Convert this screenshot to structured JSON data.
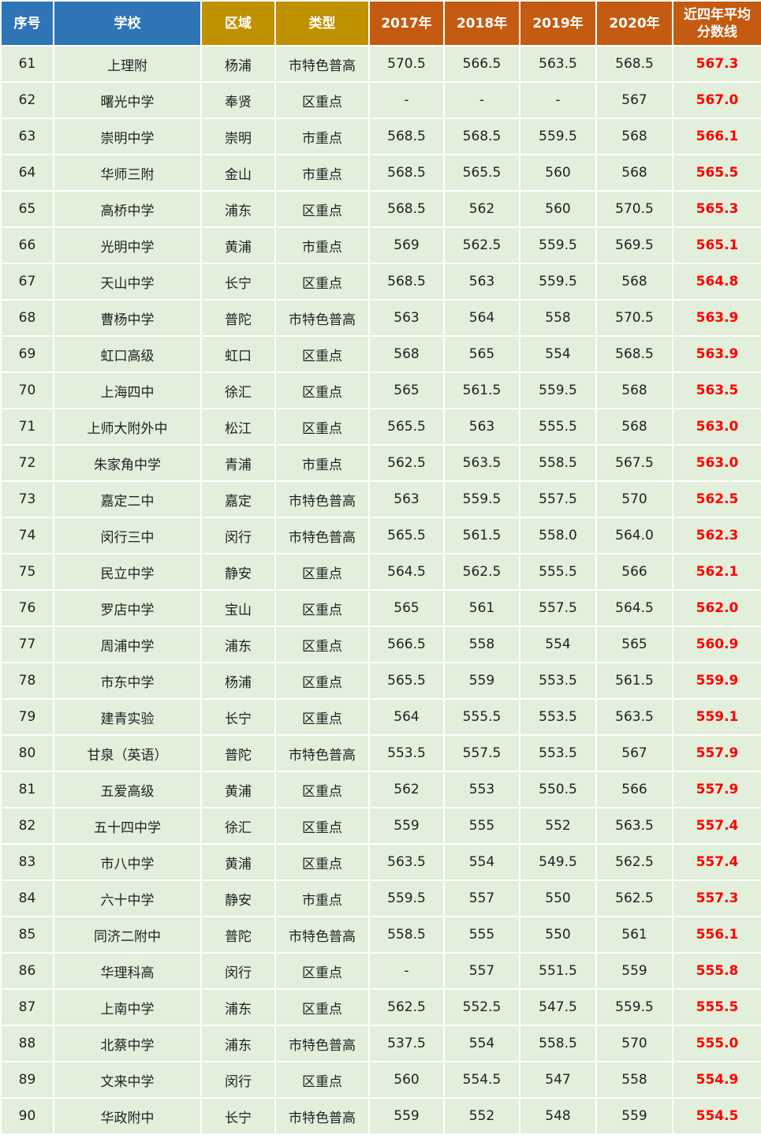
{
  "colors": {
    "header_blue": "#2e75b6",
    "header_gold": "#bf9000",
    "header_orange": "#c55a11",
    "row_bg": "#e2efda",
    "avg_text": "#ff0000"
  },
  "headers": [
    "序号",
    "学校",
    "区域",
    "类型",
    "2017年",
    "2018年",
    "2019年",
    "2020年",
    "近四年平均分数线"
  ],
  "rows": [
    [
      "61",
      "上理附",
      "杨浦",
      "市特色普高",
      "570.5",
      "566.5",
      "563.5",
      "568.5",
      "567.3"
    ],
    [
      "62",
      "曙光中学",
      "奉贤",
      "区重点",
      "-",
      "-",
      "-",
      "567",
      "567.0"
    ],
    [
      "63",
      "崇明中学",
      "崇明",
      "市重点",
      "568.5",
      "568.5",
      "559.5",
      "568",
      "566.1"
    ],
    [
      "64",
      "华师三附",
      "金山",
      "市重点",
      "568.5",
      "565.5",
      "560",
      "568",
      "565.5"
    ],
    [
      "65",
      "高桥中学",
      "浦东",
      "区重点",
      "568.5",
      "562",
      "560",
      "570.5",
      "565.3"
    ],
    [
      "66",
      "光明中学",
      "黄浦",
      "市重点",
      "569",
      "562.5",
      "559.5",
      "569.5",
      "565.1"
    ],
    [
      "67",
      "天山中学",
      "长宁",
      "区重点",
      "568.5",
      "563",
      "559.5",
      "568",
      "564.8"
    ],
    [
      "68",
      "曹杨中学",
      "普陀",
      "市特色普高",
      "563",
      "564",
      "558",
      "570.5",
      "563.9"
    ],
    [
      "69",
      "虹口高级",
      "虹口",
      "区重点",
      "568",
      "565",
      "554",
      "568.5",
      "563.9"
    ],
    [
      "70",
      "上海四中",
      "徐汇",
      "区重点",
      "565",
      "561.5",
      "559.5",
      "568",
      "563.5"
    ],
    [
      "71",
      "上师大附外中",
      "松江",
      "区重点",
      "565.5",
      "563",
      "555.5",
      "568",
      "563.0"
    ],
    [
      "72",
      "朱家角中学",
      "青浦",
      "市重点",
      "562.5",
      "563.5",
      "558.5",
      "567.5",
      "563.0"
    ],
    [
      "73",
      "嘉定二中",
      "嘉定",
      "市特色普高",
      "563",
      "559.5",
      "557.5",
      "570",
      "562.5"
    ],
    [
      "74",
      "闵行三中",
      "闵行",
      "市特色普高",
      "565.5",
      "561.5",
      "558.0",
      "564.0",
      "562.3"
    ],
    [
      "75",
      "民立中学",
      "静安",
      "区重点",
      "564.5",
      "562.5",
      "555.5",
      "566",
      "562.1"
    ],
    [
      "76",
      "罗店中学",
      "宝山",
      "区重点",
      "565",
      "561",
      "557.5",
      "564.5",
      "562.0"
    ],
    [
      "77",
      "周浦中学",
      "浦东",
      "区重点",
      "566.5",
      "558",
      "554",
      "565",
      "560.9"
    ],
    [
      "78",
      "市东中学",
      "杨浦",
      "区重点",
      "565.5",
      "559",
      "553.5",
      "561.5",
      "559.9"
    ],
    [
      "79",
      "建青实验",
      "长宁",
      "区重点",
      "564",
      "555.5",
      "553.5",
      "563.5",
      "559.1"
    ],
    [
      "80",
      "甘泉（英语）",
      "普陀",
      "市特色普高",
      "553.5",
      "557.5",
      "553.5",
      "567",
      "557.9"
    ],
    [
      "81",
      "五爱高级",
      "黄浦",
      "区重点",
      "562",
      "553",
      "550.5",
      "566",
      "557.9"
    ],
    [
      "82",
      "五十四中学",
      "徐汇",
      "区重点",
      "559",
      "555",
      "552",
      "563.5",
      "557.4"
    ],
    [
      "83",
      "市八中学",
      "黄浦",
      "区重点",
      "563.5",
      "554",
      "549.5",
      "562.5",
      "557.4"
    ],
    [
      "84",
      "六十中学",
      "静安",
      "市重点",
      "559.5",
      "557",
      "550",
      "562.5",
      "557.3"
    ],
    [
      "85",
      "同济二附中",
      "普陀",
      "市特色普高",
      "558.5",
      "555",
      "550",
      "561",
      "556.1"
    ],
    [
      "86",
      "华理科高",
      "闵行",
      "区重点",
      "-",
      "557",
      "551.5",
      "559",
      "555.8"
    ],
    [
      "87",
      "上南中学",
      "浦东",
      "区重点",
      "562.5",
      "552.5",
      "547.5",
      "559.5",
      "555.5"
    ],
    [
      "88",
      "北蔡中学",
      "浦东",
      "市特色普高",
      "537.5",
      "554",
      "558.5",
      "570",
      "555.0"
    ],
    [
      "89",
      "文来中学",
      "闵行",
      "区重点",
      "560",
      "554.5",
      "547",
      "558",
      "554.9"
    ],
    [
      "90",
      "华政附中",
      "长宁",
      "市特色普高",
      "559",
      "552",
      "548",
      "559",
      "554.5"
    ]
  ]
}
